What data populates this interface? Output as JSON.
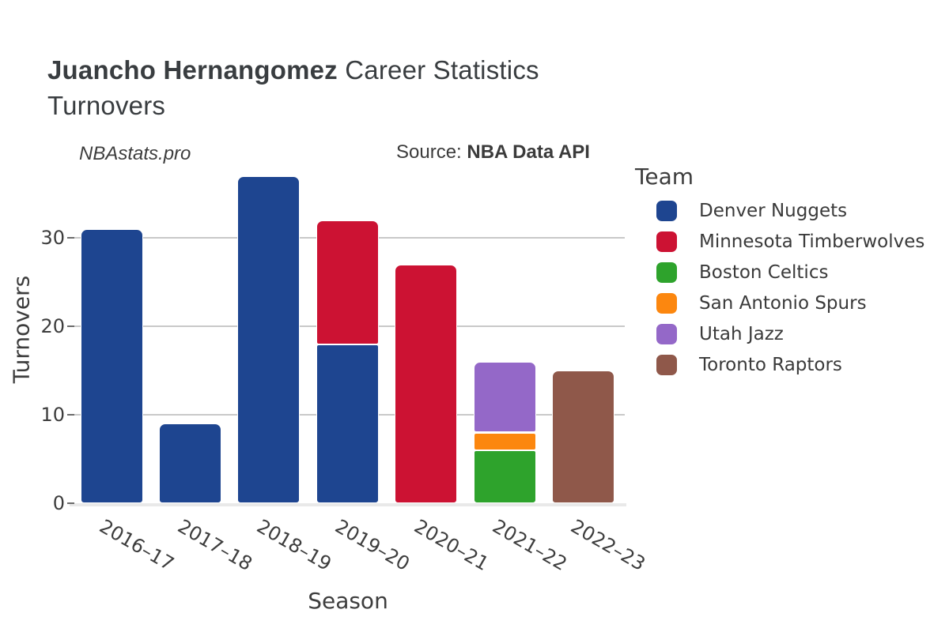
{
  "header": {
    "title_bold": "Juancho Hernangomez",
    "title_rest": " Career Statistics",
    "subtitle": "Turnovers",
    "watermark": "NBAstats.pro",
    "source_prefix": "Source: ",
    "source_name": "NBA Data API"
  },
  "legend": {
    "title": "Team"
  },
  "chart_data": {
    "type": "bar",
    "stacked": true,
    "title": "Juancho Hernangomez Career Statistics",
    "subtitle": "Turnovers",
    "xlabel": "Season",
    "ylabel": "Turnovers",
    "categories": [
      "2016–17",
      "2017–18",
      "2018–19",
      "2019–20",
      "2020–21",
      "2021–22",
      "2022–23"
    ],
    "series": [
      {
        "name": "Denver Nuggets",
        "color": "#1e4590",
        "values": [
          31,
          9,
          37,
          18,
          0,
          0,
          0
        ]
      },
      {
        "name": "Minnesota Timberwolves",
        "color": "#cc1233",
        "values": [
          0,
          0,
          0,
          14,
          27,
          0,
          0
        ]
      },
      {
        "name": "Boston Celtics",
        "color": "#2ea32c",
        "values": [
          0,
          0,
          0,
          0,
          0,
          6,
          0
        ]
      },
      {
        "name": "San Antonio Spurs",
        "color": "#fc870f",
        "values": [
          0,
          0,
          0,
          0,
          0,
          2,
          0
        ]
      },
      {
        "name": "Utah Jazz",
        "color": "#9468c8",
        "values": [
          0,
          0,
          0,
          0,
          0,
          8,
          0
        ]
      },
      {
        "name": "Toronto Raptors",
        "color": "#8f584a",
        "values": [
          0,
          0,
          0,
          0,
          0,
          0,
          15
        ]
      }
    ],
    "stack_totals": [
      31,
      9,
      37,
      32,
      27,
      16,
      15
    ],
    "yticks": [
      0,
      10,
      20,
      30
    ],
    "ylim": [
      0,
      38
    ],
    "grid": true,
    "legend_position": "right"
  }
}
